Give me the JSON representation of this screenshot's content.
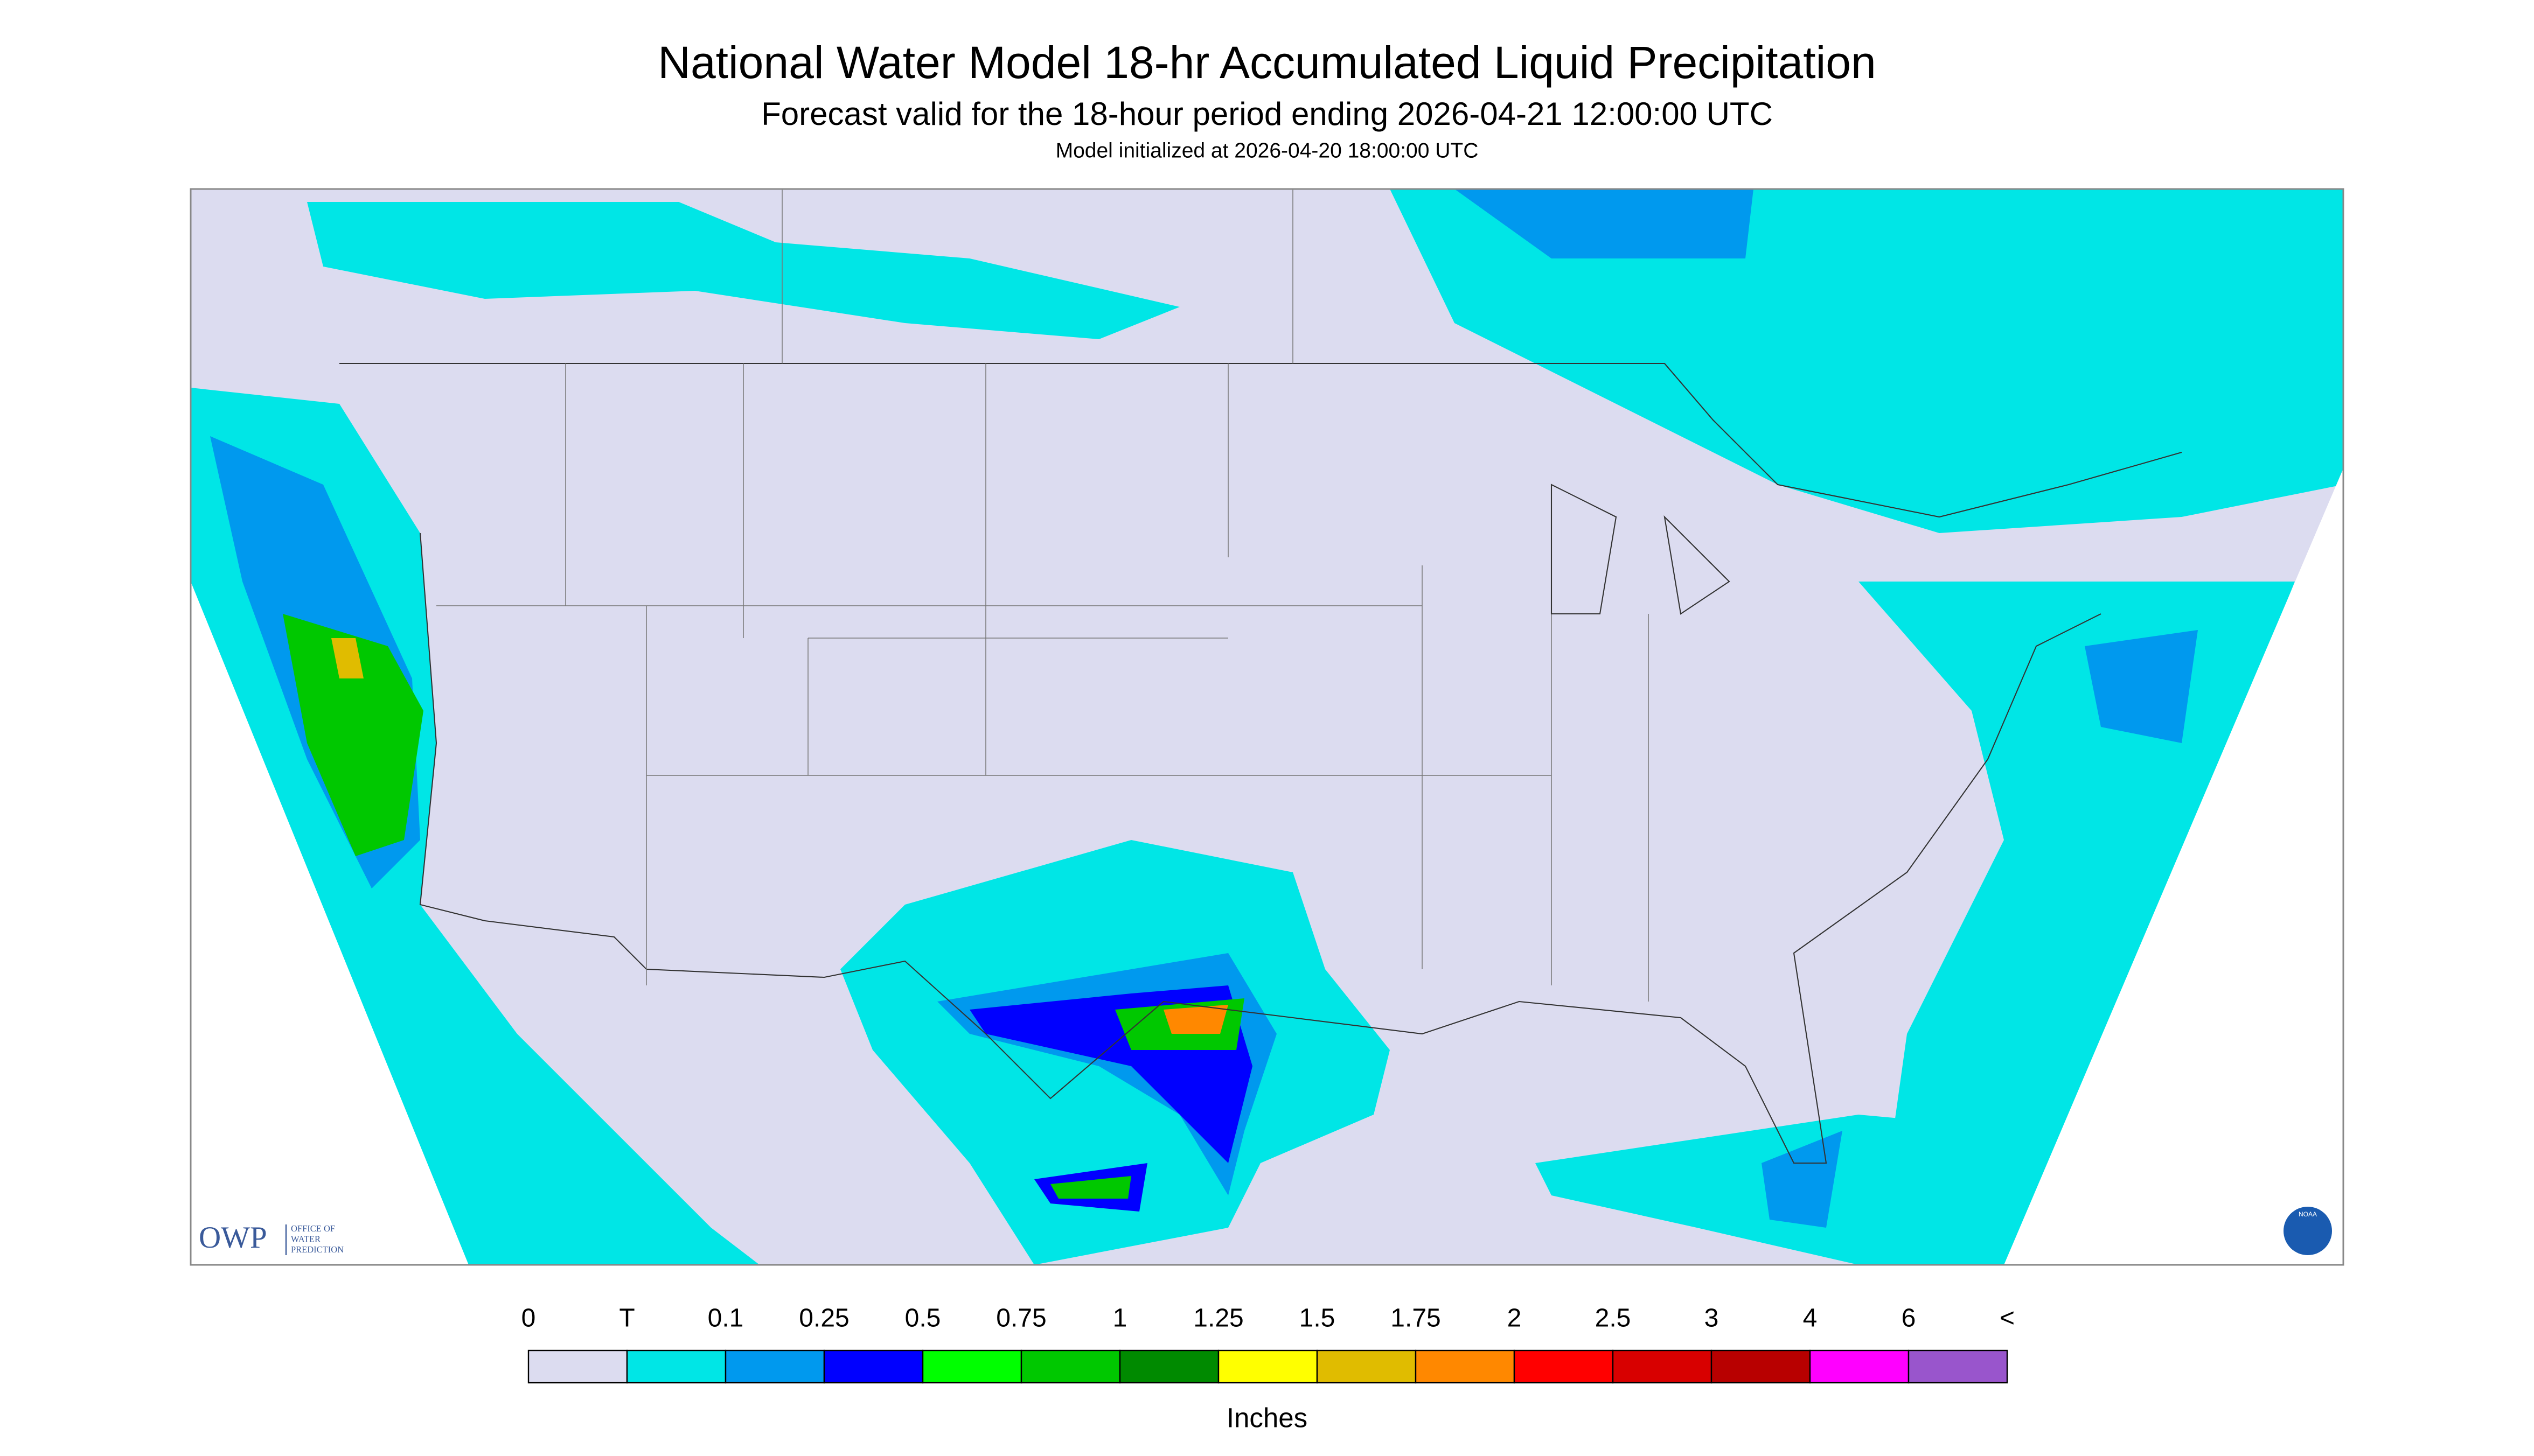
{
  "header": {
    "title": "National Water Model 18-hr Accumulated Liquid Precipitation",
    "subtitle": "Forecast valid for the 18-hour period ending 2026-04-21 12:00:00 UTC",
    "note": "Model initialized at 2026-04-20 18:00:00 UTC"
  },
  "legend": {
    "labels": [
      "0",
      "T",
      "0.1",
      "0.25",
      "0.5",
      "0.75",
      "1",
      "1.25",
      "1.5",
      "1.75",
      "2",
      "2.5",
      "3",
      "4",
      "6",
      "<"
    ],
    "colors": [
      "#dcdcf0",
      "#00e6e6",
      "#0099ee",
      "#0000ff",
      "#00ff00",
      "#00c800",
      "#008a00",
      "#ffff00",
      "#e0bc00",
      "#ff8800",
      "#ff0000",
      "#d80000",
      "#b80000",
      "#ff00ff",
      "#9955cc"
    ],
    "unit": "Inches"
  },
  "logos": {
    "owp": "OWP",
    "owp_lines": [
      "OFFICE OF",
      "WATER",
      "PREDICTION"
    ],
    "noaa": "NOAA"
  }
}
